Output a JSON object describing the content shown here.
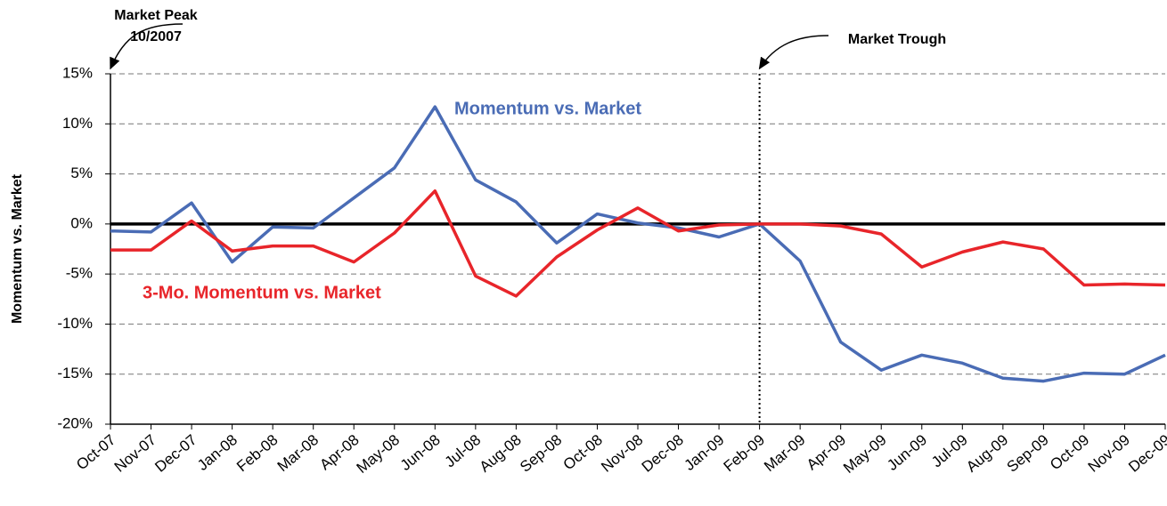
{
  "chart_data": {
    "type": "line",
    "y_label": "Momentum vs. Market",
    "categories": [
      "Oct-07",
      "Nov-07",
      "Dec-07",
      "Jan-08",
      "Feb-08",
      "Mar-08",
      "Apr-08",
      "May-08",
      "Jun-08",
      "Jul-08",
      "Aug-08",
      "Sep-08",
      "Oct-08",
      "Nov-08",
      "Dec-08",
      "Jan-09",
      "Feb-09",
      "Mar-09",
      "Apr-09",
      "May-09",
      "Jun-09",
      "Jul-09",
      "Aug-09",
      "Sep-09",
      "Oct-09",
      "Nov-09",
      "Dec-09"
    ],
    "series": [
      {
        "name": "Momentum vs. Market",
        "color": "#4a6cb5",
        "values": [
          -0.7,
          -0.8,
          2.1,
          -3.8,
          -0.3,
          -0.4,
          2.6,
          5.6,
          11.7,
          4.4,
          2.2,
          -1.9,
          1.0,
          0.1,
          -0.4,
          -1.3,
          0,
          -3.7,
          -11.8,
          -14.6,
          -13.1,
          -13.9,
          -15.4,
          -15.7,
          -14.9,
          -15.0,
          -13.1
        ]
      },
      {
        "name": "3-Mo. Momentum vs. Market",
        "color": "#e8252a",
        "values": [
          -2.6,
          -2.6,
          0.3,
          -2.7,
          -2.2,
          -2.2,
          -3.8,
          -0.9,
          3.3,
          -5.2,
          -7.2,
          -3.3,
          -0.6,
          1.6,
          -0.7,
          -0.1,
          0,
          0,
          -0.2,
          -1.0,
          -4.3,
          -2.8,
          -1.8,
          -2.5,
          -6.1,
          -6.0,
          -6.1
        ]
      }
    ],
    "ylim": [
      -20,
      15
    ],
    "yticks": [
      {
        "value": -20,
        "label": "-20%"
      },
      {
        "value": -15,
        "label": "-15%"
      },
      {
        "value": -10,
        "label": "-10%"
      },
      {
        "value": -5,
        "label": "-5%"
      },
      {
        "value": 0,
        "label": "0%"
      },
      {
        "value": 5,
        "label": "5%"
      },
      {
        "value": 10,
        "label": "10%"
      },
      {
        "value": 15,
        "label": "15%"
      }
    ],
    "grid": true,
    "annotations": [
      {
        "lines": [
          "Market Peak",
          "10/2007"
        ],
        "x": "Oct-07"
      },
      {
        "lines": [
          "Market Trough"
        ],
        "x": "Feb-09"
      }
    ]
  }
}
